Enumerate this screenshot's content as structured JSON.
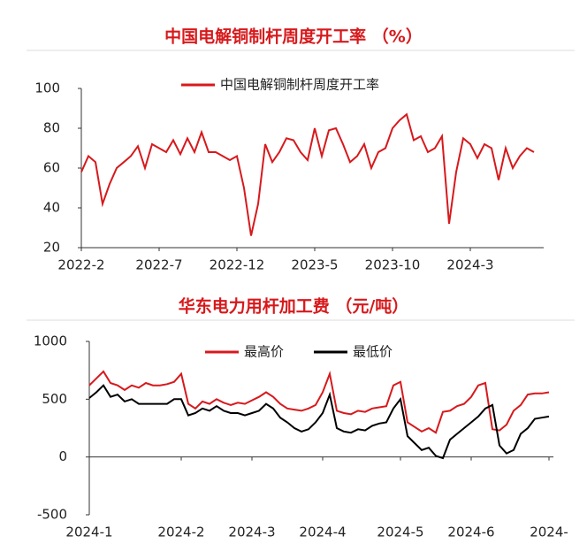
{
  "chart_data": [
    {
      "type": "line",
      "title": "中国电解铜制杆周度开工率 （%）",
      "categories": [
        "2022-2",
        null,
        null,
        null,
        null,
        null,
        null,
        null,
        null,
        null,
        null,
        "2022-7",
        null,
        null,
        null,
        null,
        null,
        null,
        null,
        null,
        null,
        null,
        "2022-12",
        null,
        null,
        null,
        null,
        null,
        null,
        null,
        null,
        null,
        null,
        "2023-5",
        null,
        null,
        null,
        null,
        null,
        null,
        null,
        null,
        null,
        null,
        "2023-10",
        null,
        null,
        null,
        null,
        null,
        null,
        null,
        null,
        null,
        null,
        "2024-3",
        null,
        null,
        null,
        null,
        null,
        null,
        null,
        null,
        null
      ],
      "series": [
        {
          "name": "中国电解铜制杆周度开工率",
          "color": "#d7191c",
          "values": [
            58,
            66,
            63,
            42,
            52,
            60,
            63,
            66,
            71,
            60,
            72,
            70,
            68,
            74,
            67,
            75,
            68,
            78,
            68,
            68,
            66,
            64,
            66,
            50,
            26,
            42,
            72,
            63,
            68,
            75,
            74,
            68,
            64,
            80,
            66,
            79,
            80,
            72,
            63,
            66,
            72,
            60,
            68,
            70,
            80,
            84,
            87,
            74,
            76,
            68,
            70,
            76,
            32,
            58,
            75,
            72,
            65,
            72,
            70,
            54,
            70,
            60,
            66,
            70,
            68
          ]
        }
      ],
      "ylim": [
        20,
        100
      ],
      "yticks": [
        20,
        40,
        60,
        80,
        100
      ],
      "legend": "upper center"
    },
    {
      "type": "line",
      "title": "华东电力用杆加工费 （元/吨）",
      "categories": [
        "2024-1",
        null,
        null,
        null,
        null,
        null,
        null,
        null,
        null,
        null,
        null,
        null,
        null,
        "2024-2",
        null,
        null,
        null,
        null,
        null,
        null,
        null,
        null,
        null,
        "2024-3",
        null,
        null,
        null,
        null,
        null,
        null,
        null,
        null,
        null,
        "2024-4",
        null,
        null,
        null,
        null,
        null,
        null,
        null,
        null,
        null,
        null,
        "2024-5",
        null,
        null,
        null,
        null,
        null,
        null,
        null,
        null,
        null,
        "2024-6",
        null,
        null,
        null,
        null,
        null,
        null,
        null,
        null,
        null,
        null,
        "2024-"
      ],
      "series": [
        {
          "name": "最高价",
          "color": "#d7191c",
          "values": [
            620,
            680,
            740,
            640,
            620,
            580,
            620,
            600,
            640,
            620,
            620,
            630,
            650,
            720,
            460,
            420,
            480,
            460,
            500,
            470,
            450,
            470,
            460,
            490,
            520,
            560,
            520,
            460,
            420,
            410,
            400,
            420,
            450,
            560,
            720,
            400,
            380,
            370,
            400,
            390,
            420,
            430,
            440,
            620,
            650,
            300,
            260,
            220,
            250,
            210,
            390,
            400,
            440,
            460,
            520,
            620,
            640,
            240,
            230,
            280,
            400,
            450,
            540,
            550,
            550,
            560
          ]
        },
        {
          "name": "最低价",
          "color": "#000000",
          "values": [
            510,
            560,
            620,
            520,
            540,
            480,
            500,
            460,
            460,
            460,
            460,
            460,
            500,
            500,
            360,
            380,
            420,
            400,
            440,
            400,
            380,
            380,
            360,
            380,
            400,
            460,
            420,
            340,
            300,
            250,
            220,
            240,
            300,
            380,
            540,
            250,
            220,
            210,
            240,
            230,
            270,
            290,
            300,
            420,
            500,
            180,
            120,
            60,
            80,
            10,
            -10,
            150,
            200,
            250,
            300,
            350,
            420,
            450,
            100,
            30,
            60,
            200,
            250,
            330,
            340,
            350
          ]
        }
      ],
      "ylim": [
        -500,
        1000
      ],
      "yticks": [
        -500,
        0,
        500,
        1000
      ],
      "legend": "upper center"
    }
  ]
}
